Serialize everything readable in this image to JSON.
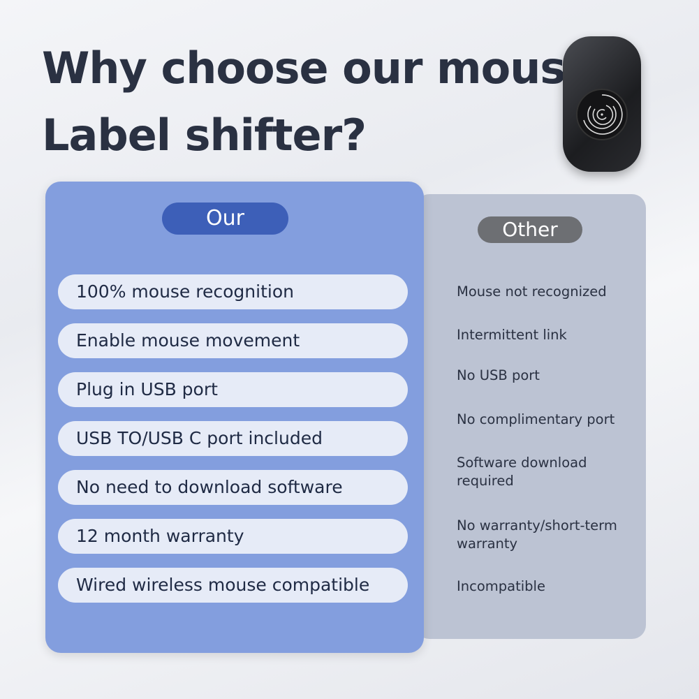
{
  "title": {
    "line1": "Why choose our mouse",
    "line2": "Label shifter?"
  },
  "our": {
    "label": "Our",
    "items": [
      "100% mouse recognition",
      "Enable mouse movement",
      "Plug in USB port",
      "USB TO/USB C port included",
      "No need to download software",
      "12 month warranty",
      "Wired wireless mouse compatible"
    ]
  },
  "other": {
    "label": "Other",
    "items": [
      "Mouse not recognized",
      "Intermittent link",
      "No USB port",
      "No complimentary port",
      "Software download required",
      "No warranty/short-term warranty",
      "Incompatible"
    ]
  },
  "colors": {
    "our_panel": "#839ede",
    "our_pill": "#3d5fb8",
    "other_panel": "#bcc3d3",
    "other_pill": "#6d6f73"
  }
}
